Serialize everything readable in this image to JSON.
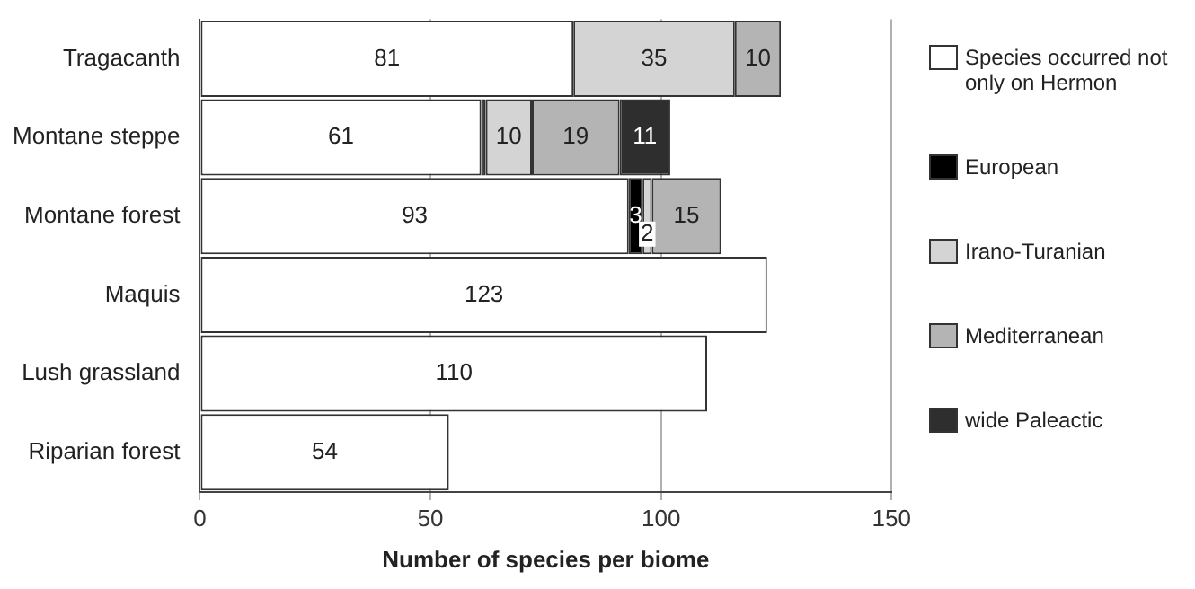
{
  "chart_data": {
    "type": "bar",
    "orientation": "horizontal",
    "stacked": true,
    "xlabel": "Number of species per biome",
    "categories": [
      "Tragacanth",
      "Montane steppe",
      "Montane forest",
      "Maquis",
      "Lush grassland",
      "Riparian forest"
    ],
    "series": [
      {
        "name": "Species occurred not only on Hermon",
        "color": "#ffffff",
        "values": [
          81,
          61,
          93,
          123,
          110,
          54
        ],
        "value_labels": [
          "81",
          "61",
          "93",
          "123",
          "110",
          "54"
        ]
      },
      {
        "name": "European",
        "color": "#000000",
        "values": [
          0,
          1,
          3,
          0,
          0,
          0
        ],
        "value_labels": [
          null,
          null,
          "3",
          null,
          null,
          null
        ]
      },
      {
        "name": "Irano-Turanian",
        "color": "#d4d4d4",
        "values": [
          35,
          10,
          2,
          0,
          0,
          0
        ],
        "value_labels": [
          "35",
          "10",
          "2",
          null,
          null,
          null
        ]
      },
      {
        "name": "Mediterranean",
        "color": "#b4b4b4",
        "values": [
          10,
          19,
          15,
          0,
          0,
          0
        ],
        "value_labels": [
          "10",
          "19",
          "15",
          null,
          null,
          null
        ]
      },
      {
        "name": "wide Paleactic",
        "color": "#2e2e2e",
        "values": [
          0,
          11,
          0,
          0,
          0,
          0
        ],
        "value_labels": [
          null,
          "11",
          null,
          null,
          null,
          null
        ]
      }
    ],
    "xlim": [
      0,
      150
    ],
    "xticks": [
      0,
      50,
      100,
      150
    ],
    "grid": "x",
    "legend": "right"
  }
}
